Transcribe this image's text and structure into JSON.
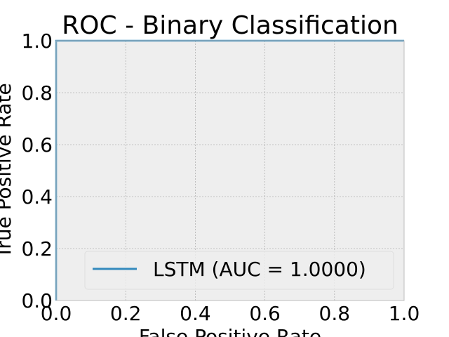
{
  "chart_data": {
    "type": "line",
    "title": "ROC - Binary Classification",
    "xlabel": "False Positive Rate",
    "ylabel": "True Positive Rate",
    "xlim": [
      0.0,
      1.0
    ],
    "ylim": [
      0.0,
      1.0
    ],
    "xticks": [
      "0.0",
      "0.2",
      "0.4",
      "0.6",
      "0.8",
      "1.0"
    ],
    "yticks": [
      "0.0",
      "0.2",
      "0.4",
      "0.6",
      "0.8",
      "1.0"
    ],
    "grid": true,
    "legend_position": "lower-right",
    "series": [
      {
        "name": "LSTM (AUC = 1.0000)",
        "x": [
          0.0,
          0.0,
          1.0
        ],
        "y": [
          0.0,
          1.0,
          1.0
        ],
        "color": "#348abd"
      }
    ],
    "colors": {
      "axes_background": "#eeeeee",
      "grid": "#b2b2b2",
      "spine": "#bcbcbc"
    }
  }
}
